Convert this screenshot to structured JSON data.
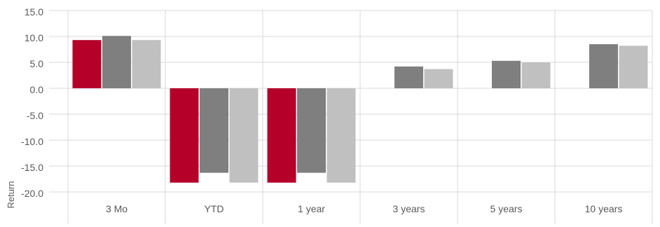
{
  "chart_data": {
    "type": "bar",
    "title": "",
    "xlabel": "",
    "ylabel": "Return",
    "ylim": [
      -20,
      15
    ],
    "yticks": [
      "15.0",
      "10.0",
      "5.0",
      "0.0",
      "-5.0",
      "-10.0",
      "-15.0",
      "-20.0"
    ],
    "categories": [
      "3 Mo",
      "YTD",
      "1 year",
      "3 years",
      "5 years",
      "10 years"
    ],
    "grid": true,
    "legend": "none",
    "series": [
      {
        "color": "#b5002a",
        "values": [
          9.3,
          -18.2,
          -18.2,
          null,
          null,
          null
        ]
      },
      {
        "color": "#7f7f7f",
        "values": [
          10.1,
          -16.3,
          -16.3,
          4.2,
          5.3,
          8.5
        ]
      },
      {
        "color": "#c0c0c0",
        "values": [
          9.3,
          -18.2,
          -18.2,
          3.7,
          5.0,
          8.2
        ]
      }
    ]
  }
}
